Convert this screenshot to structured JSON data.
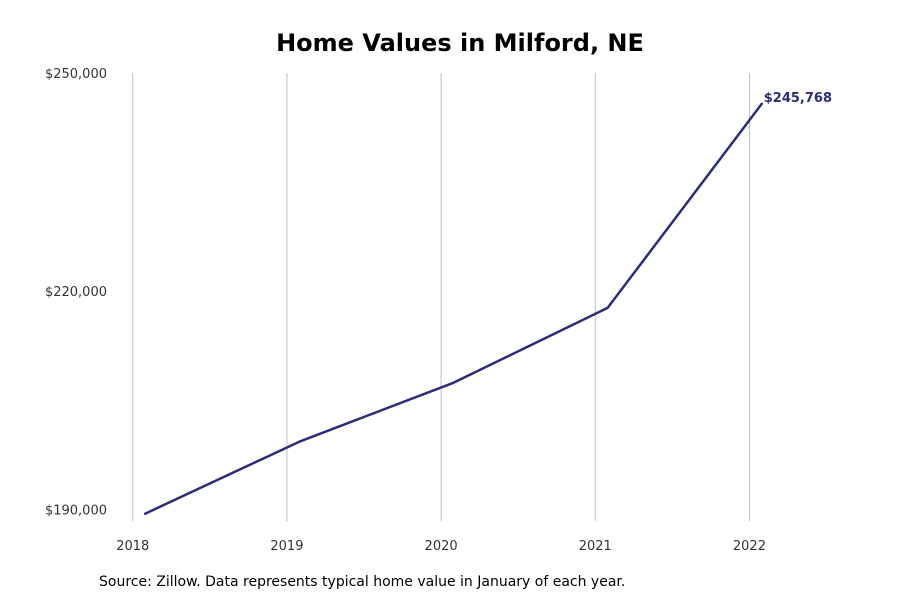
{
  "chart_data": {
    "type": "line",
    "title": "Home Values in Milford, NE",
    "xlabel": "",
    "ylabel": "",
    "x": [
      2018.08,
      2019.08,
      2020.08,
      2021.08,
      2022.08
    ],
    "x_tick_values": [
      2018,
      2019,
      2020,
      2021,
      2022
    ],
    "x_tick_labels": [
      "2018",
      "2019",
      "2020",
      "2021",
      "2022"
    ],
    "xlim": [
      2017.93,
      2022.62
    ],
    "y_tick_values": [
      190000,
      220000,
      250000
    ],
    "y_tick_labels": [
      "$190,000",
      "$220,000",
      "$250,000"
    ],
    "ylim": [
      188400,
      250000
    ],
    "series": [
      {
        "values": [
          189400,
          199300,
          207400,
          217700,
          245768
        ],
        "color": "#2b2d7c"
      }
    ],
    "end_label": "$245,768",
    "grid": "vertical"
  },
  "source": "Source: Zillow. Data represents typical home value in January of each year.",
  "colors": {
    "line": "#2b2d7c",
    "grid": "#bdbdbd",
    "end_label": "#2b2d7c"
  }
}
